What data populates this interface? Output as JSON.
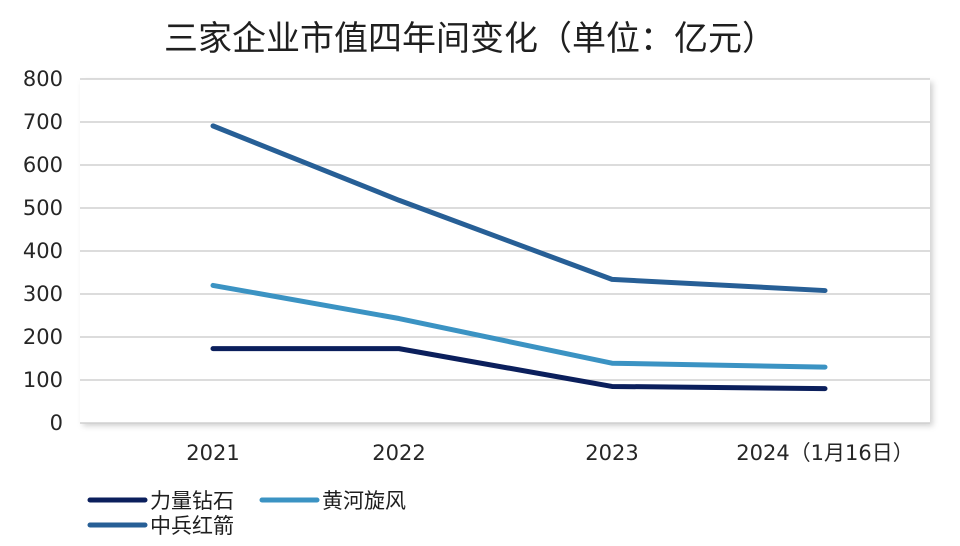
{
  "chart_data": {
    "type": "line",
    "title": "三家企业市值四年间变化（单位：亿元）",
    "categories": [
      "2021",
      "2022",
      "2023",
      "2024（1月16日）"
    ],
    "ylim": [
      0,
      800
    ],
    "yticks": [
      0,
      100,
      200,
      300,
      400,
      500,
      600,
      700,
      800
    ],
    "grid": true,
    "legend_position": "bottom-left",
    "series": [
      {
        "name": "力量钻石",
        "color": "#0b1f5c",
        "values": [
          173,
          173,
          85,
          80
        ]
      },
      {
        "name": "黄河旋风",
        "color": "#3b93c3",
        "values": [
          320,
          243,
          139,
          130
        ]
      },
      {
        "name": "中兵红箭",
        "color": "#275f96",
        "values": [
          691,
          518,
          334,
          308
        ]
      }
    ]
  }
}
